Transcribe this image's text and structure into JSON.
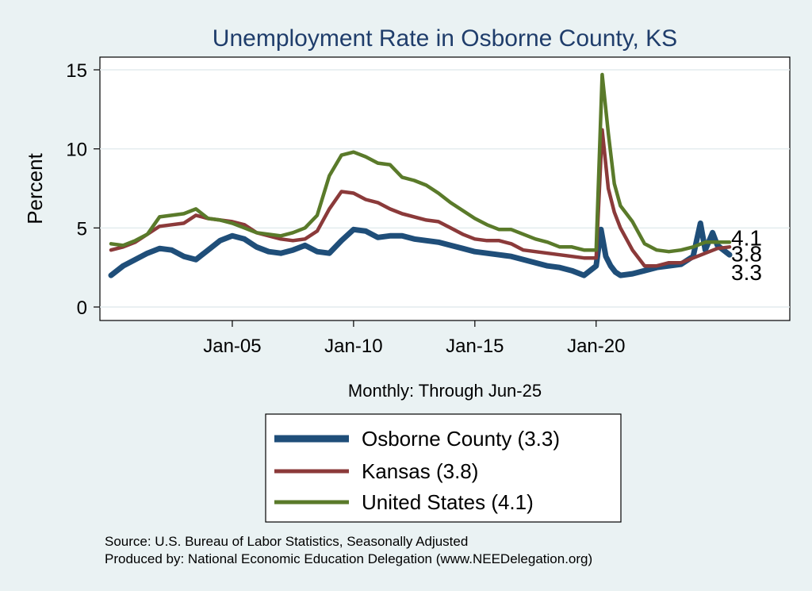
{
  "chart_data": {
    "type": "line",
    "title": "Unemployment Rate in Osborne  County, KS",
    "ylabel": "Percent",
    "xlabel": "Monthly: Through Jun-25",
    "ylim": [
      0,
      15
    ],
    "yticks": [
      "0",
      "5",
      "10",
      "15"
    ],
    "xticks": [
      {
        "label": "Jan-05",
        "year": 2005.0
      },
      {
        "label": "Jan-10",
        "year": 2010.0
      },
      {
        "label": "Jan-15",
        "year": 2015.0
      },
      {
        "label": "Jan-20",
        "year": 2020.0
      }
    ],
    "x_range": [
      2000.0,
      2025.5
    ],
    "grid": true,
    "legend_position": "bottom",
    "series": [
      {
        "name": "Osborne  County (3.3)",
        "color": "#1f4e79",
        "end_label": "3.3",
        "points": [
          [
            2000.0,
            2.0
          ],
          [
            2000.5,
            2.6
          ],
          [
            2001.0,
            3.0
          ],
          [
            2001.5,
            3.4
          ],
          [
            2002.0,
            3.7
          ],
          [
            2002.5,
            3.6
          ],
          [
            2003.0,
            3.2
          ],
          [
            2003.5,
            3.0
          ],
          [
            2004.0,
            3.6
          ],
          [
            2004.5,
            4.2
          ],
          [
            2005.0,
            4.5
          ],
          [
            2005.5,
            4.3
          ],
          [
            2006.0,
            3.8
          ],
          [
            2006.5,
            3.5
          ],
          [
            2007.0,
            3.4
          ],
          [
            2007.5,
            3.6
          ],
          [
            2008.0,
            3.9
          ],
          [
            2008.5,
            3.5
          ],
          [
            2009.0,
            3.4
          ],
          [
            2009.5,
            4.2
          ],
          [
            2010.0,
            4.9
          ],
          [
            2010.5,
            4.8
          ],
          [
            2011.0,
            4.4
          ],
          [
            2011.5,
            4.5
          ],
          [
            2012.0,
            4.5
          ],
          [
            2012.5,
            4.3
          ],
          [
            2013.0,
            4.2
          ],
          [
            2013.5,
            4.1
          ],
          [
            2014.0,
            3.9
          ],
          [
            2014.5,
            3.7
          ],
          [
            2015.0,
            3.5
          ],
          [
            2015.5,
            3.4
          ],
          [
            2016.0,
            3.3
          ],
          [
            2016.5,
            3.2
          ],
          [
            2017.0,
            3.0
          ],
          [
            2017.5,
            2.8
          ],
          [
            2018.0,
            2.6
          ],
          [
            2018.5,
            2.5
          ],
          [
            2019.0,
            2.3
          ],
          [
            2019.5,
            2.0
          ],
          [
            2020.0,
            2.6
          ],
          [
            2020.2,
            4.9
          ],
          [
            2020.4,
            3.2
          ],
          [
            2020.6,
            2.6
          ],
          [
            2020.8,
            2.2
          ],
          [
            2021.0,
            2.0
          ],
          [
            2021.5,
            2.1
          ],
          [
            2022.0,
            2.3
          ],
          [
            2022.5,
            2.5
          ],
          [
            2023.0,
            2.6
          ],
          [
            2023.5,
            2.7
          ],
          [
            2024.0,
            3.2
          ],
          [
            2024.3,
            5.3
          ],
          [
            2024.5,
            3.6
          ],
          [
            2024.8,
            4.7
          ],
          [
            2025.0,
            3.9
          ],
          [
            2025.5,
            3.3
          ]
        ]
      },
      {
        "name": "Kansas (3.8)",
        "color": "#8b3a3a",
        "end_label": "3.8",
        "points": [
          [
            2000.0,
            3.6
          ],
          [
            2000.5,
            3.8
          ],
          [
            2001.0,
            4.1
          ],
          [
            2001.5,
            4.6
          ],
          [
            2002.0,
            5.1
          ],
          [
            2002.5,
            5.2
          ],
          [
            2003.0,
            5.3
          ],
          [
            2003.5,
            5.8
          ],
          [
            2004.0,
            5.6
          ],
          [
            2004.5,
            5.5
          ],
          [
            2005.0,
            5.4
          ],
          [
            2005.5,
            5.2
          ],
          [
            2006.0,
            4.7
          ],
          [
            2006.5,
            4.5
          ],
          [
            2007.0,
            4.3
          ],
          [
            2007.5,
            4.2
          ],
          [
            2008.0,
            4.3
          ],
          [
            2008.5,
            4.8
          ],
          [
            2009.0,
            6.2
          ],
          [
            2009.5,
            7.3
          ],
          [
            2010.0,
            7.2
          ],
          [
            2010.5,
            6.8
          ],
          [
            2011.0,
            6.6
          ],
          [
            2011.5,
            6.2
          ],
          [
            2012.0,
            5.9
          ],
          [
            2012.5,
            5.7
          ],
          [
            2013.0,
            5.5
          ],
          [
            2013.5,
            5.4
          ],
          [
            2014.0,
            5.0
          ],
          [
            2014.5,
            4.6
          ],
          [
            2015.0,
            4.3
          ],
          [
            2015.5,
            4.2
          ],
          [
            2016.0,
            4.2
          ],
          [
            2016.5,
            4.0
          ],
          [
            2017.0,
            3.6
          ],
          [
            2017.5,
            3.5
          ],
          [
            2018.0,
            3.4
          ],
          [
            2018.5,
            3.3
          ],
          [
            2019.0,
            3.2
          ],
          [
            2019.5,
            3.1
          ],
          [
            2020.0,
            3.1
          ],
          [
            2020.25,
            11.2
          ],
          [
            2020.5,
            7.5
          ],
          [
            2020.75,
            6.0
          ],
          [
            2021.0,
            5.0
          ],
          [
            2021.5,
            3.6
          ],
          [
            2022.0,
            2.6
          ],
          [
            2022.5,
            2.6
          ],
          [
            2023.0,
            2.8
          ],
          [
            2023.5,
            2.8
          ],
          [
            2024.0,
            3.1
          ],
          [
            2024.5,
            3.4
          ],
          [
            2025.0,
            3.7
          ],
          [
            2025.5,
            3.8
          ]
        ]
      },
      {
        "name": "United States (4.1)",
        "color": "#5a7a2a",
        "end_label": "4.1",
        "points": [
          [
            2000.0,
            4.0
          ],
          [
            2000.5,
            3.9
          ],
          [
            2001.0,
            4.2
          ],
          [
            2001.5,
            4.6
          ],
          [
            2002.0,
            5.7
          ],
          [
            2002.5,
            5.8
          ],
          [
            2003.0,
            5.9
          ],
          [
            2003.5,
            6.2
          ],
          [
            2004.0,
            5.6
          ],
          [
            2004.5,
            5.5
          ],
          [
            2005.0,
            5.3
          ],
          [
            2005.5,
            5.0
          ],
          [
            2006.0,
            4.7
          ],
          [
            2006.5,
            4.6
          ],
          [
            2007.0,
            4.5
          ],
          [
            2007.5,
            4.7
          ],
          [
            2008.0,
            5.0
          ],
          [
            2008.5,
            5.8
          ],
          [
            2009.0,
            8.3
          ],
          [
            2009.5,
            9.6
          ],
          [
            2010.0,
            9.8
          ],
          [
            2010.5,
            9.5
          ],
          [
            2011.0,
            9.1
          ],
          [
            2011.5,
            9.0
          ],
          [
            2012.0,
            8.2
          ],
          [
            2012.5,
            8.0
          ],
          [
            2013.0,
            7.7
          ],
          [
            2013.5,
            7.2
          ],
          [
            2014.0,
            6.6
          ],
          [
            2014.5,
            6.1
          ],
          [
            2015.0,
            5.6
          ],
          [
            2015.5,
            5.2
          ],
          [
            2016.0,
            4.9
          ],
          [
            2016.5,
            4.9
          ],
          [
            2017.0,
            4.6
          ],
          [
            2017.5,
            4.3
          ],
          [
            2018.0,
            4.1
          ],
          [
            2018.5,
            3.8
          ],
          [
            2019.0,
            3.8
          ],
          [
            2019.5,
            3.6
          ],
          [
            2020.0,
            3.6
          ],
          [
            2020.25,
            14.7
          ],
          [
            2020.5,
            11.0
          ],
          [
            2020.75,
            7.8
          ],
          [
            2021.0,
            6.4
          ],
          [
            2021.5,
            5.4
          ],
          [
            2022.0,
            4.0
          ],
          [
            2022.5,
            3.6
          ],
          [
            2023.0,
            3.5
          ],
          [
            2023.5,
            3.6
          ],
          [
            2024.0,
            3.8
          ],
          [
            2024.5,
            4.1
          ],
          [
            2025.0,
            4.1
          ],
          [
            2025.5,
            4.1
          ]
        ]
      }
    ],
    "source_line_1": "Source: U.S. Bureau of Labor Statistics, Seasonally Adjusted",
    "source_line_2": "Produced by: National Economic Education Delegation (www.NEEDelegation.org)"
  }
}
